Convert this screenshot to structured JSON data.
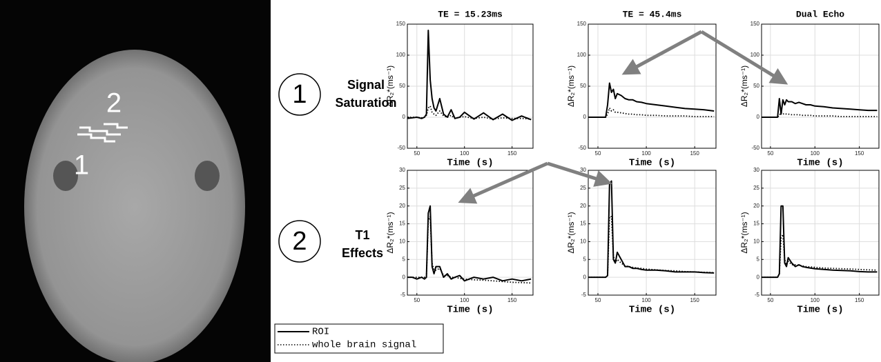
{
  "image_labels": [
    "2",
    "1"
  ],
  "row_labels": [
    {
      "number": "1",
      "lines": [
        "Signal",
        "Saturation"
      ]
    },
    {
      "number": "2",
      "lines": [
        "T1",
        "Effects"
      ]
    }
  ],
  "chart_data": [
    {
      "type": "line",
      "title": "TE = 15.23ms",
      "xlabel": "Time (s)",
      "ylabel": "ΔR₂*(ms⁻¹)",
      "x": [
        40,
        45,
        50,
        55,
        58,
        60,
        62,
        64,
        66,
        68,
        70,
        74,
        78,
        82,
        86,
        90,
        95,
        100,
        110,
        120,
        130,
        140,
        150,
        160,
        170
      ],
      "xlim": [
        40,
        172
      ],
      "xticks": [
        50,
        100,
        150
      ],
      "ylim": [
        -50,
        150
      ],
      "yticks": [
        -50,
        0,
        50,
        100,
        150
      ],
      "grid": true,
      "series": [
        {
          "name": "ROI",
          "color": "#000000",
          "style": "solid",
          "values": [
            -2,
            -1,
            0,
            -2,
            0,
            5,
            140,
            60,
            30,
            15,
            10,
            30,
            5,
            0,
            12,
            -2,
            0,
            8,
            -3,
            7,
            -4,
            5,
            -5,
            2,
            -4
          ]
        },
        {
          "name": "whole brain signal",
          "color": "#000000",
          "style": "dotted",
          "values": [
            0,
            0,
            0,
            -1,
            0,
            3,
            15,
            18,
            8,
            5,
            3,
            10,
            2,
            0,
            3,
            -2,
            0,
            1,
            -2,
            0,
            -3,
            -1,
            -2,
            -2,
            -3
          ]
        }
      ]
    },
    {
      "type": "line",
      "title": "TE = 45.4ms",
      "xlabel": "Time (s)",
      "ylabel": "ΔR₂*(ms⁻¹)",
      "x": [
        40,
        45,
        50,
        55,
        58,
        60,
        62,
        64,
        66,
        68,
        70,
        74,
        78,
        82,
        86,
        90,
        95,
        100,
        110,
        120,
        130,
        140,
        150,
        160,
        170
      ],
      "xlim": [
        40,
        172
      ],
      "xticks": [
        50,
        100,
        150
      ],
      "ylim": [
        -50,
        150
      ],
      "yticks": [
        -50,
        0,
        50,
        100,
        150
      ],
      "grid": true,
      "series": [
        {
          "name": "ROI",
          "color": "#000000",
          "style": "solid",
          "values": [
            0,
            0,
            0,
            0,
            0,
            20,
            55,
            40,
            45,
            30,
            38,
            35,
            30,
            28,
            28,
            25,
            24,
            22,
            20,
            18,
            16,
            14,
            13,
            12,
            10
          ]
        },
        {
          "name": "whole brain signal",
          "color": "#000000",
          "style": "dotted",
          "values": [
            0,
            0,
            0,
            0,
            0,
            5,
            15,
            10,
            12,
            8,
            8,
            7,
            6,
            5,
            5,
            4,
            4,
            3,
            3,
            2,
            2,
            2,
            1,
            1,
            1
          ]
        }
      ]
    },
    {
      "type": "line",
      "title": "Dual Echo",
      "xlabel": "Time (s)",
      "ylabel": "ΔR₂*(ms⁻¹)",
      "x": [
        40,
        45,
        50,
        55,
        58,
        60,
        62,
        64,
        66,
        68,
        70,
        74,
        78,
        82,
        86,
        90,
        95,
        100,
        110,
        120,
        130,
        140,
        150,
        160,
        170
      ],
      "xlim": [
        40,
        172
      ],
      "xticks": [
        50,
        100,
        150
      ],
      "ylim": [
        -50,
        150
      ],
      "yticks": [
        -50,
        0,
        50,
        100,
        150
      ],
      "grid": true,
      "series": [
        {
          "name": "ROI",
          "color": "#000000",
          "style": "solid",
          "values": [
            0,
            0,
            0,
            0,
            0,
            30,
            5,
            28,
            20,
            28,
            25,
            25,
            22,
            24,
            22,
            20,
            20,
            18,
            17,
            15,
            14,
            13,
            12,
            11,
            11
          ]
        },
        {
          "name": "whole brain signal",
          "color": "#000000",
          "style": "dotted",
          "values": [
            0,
            0,
            0,
            0,
            0,
            3,
            8,
            5,
            6,
            5,
            5,
            4,
            4,
            4,
            3,
            3,
            3,
            2,
            2,
            2,
            1,
            1,
            1,
            1,
            1
          ]
        }
      ]
    },
    {
      "type": "line",
      "xlabel": "Time (s)",
      "ylabel": "ΔR₂*(ms⁻¹)",
      "x": [
        40,
        45,
        50,
        55,
        58,
        60,
        62,
        64,
        66,
        68,
        70,
        74,
        78,
        82,
        86,
        90,
        95,
        100,
        110,
        120,
        130,
        140,
        150,
        160,
        170
      ],
      "xlim": [
        40,
        172
      ],
      "xticks": [
        50,
        100,
        150
      ],
      "ylim": [
        -5,
        30
      ],
      "yticks": [
        -5,
        0,
        5,
        10,
        15,
        20,
        25,
        30
      ],
      "grid": true,
      "series": [
        {
          "name": "ROI",
          "color": "#000000",
          "style": "solid",
          "values": [
            0,
            0,
            -0.5,
            0,
            -0.5,
            0,
            18,
            20,
            3,
            1,
            3,
            3,
            0,
            1,
            -0.5,
            0,
            0.5,
            -1,
            0,
            -0.5,
            0,
            -1,
            -0.5,
            -1,
            -0.5
          ]
        },
        {
          "name": "whole brain signal",
          "color": "#000000",
          "style": "dotted",
          "values": [
            0,
            0,
            0,
            0,
            0,
            0,
            16,
            17,
            4,
            2,
            2,
            2.5,
            0.5,
            0.5,
            0,
            0,
            -0.3,
            -0.5,
            -0.7,
            -0.8,
            -1,
            -1.2,
            -1.4,
            -1.5,
            -1.6
          ]
        }
      ]
    },
    {
      "type": "line",
      "xlabel": "Time (s)",
      "ylabel": "ΔR₂*(ms⁻¹)",
      "x": [
        40,
        45,
        50,
        55,
        58,
        60,
        62,
        64,
        66,
        68,
        70,
        74,
        78,
        82,
        86,
        90,
        95,
        100,
        110,
        120,
        130,
        140,
        150,
        160,
        170
      ],
      "xlim": [
        40,
        172
      ],
      "xticks": [
        50,
        100,
        150
      ],
      "ylim": [
        -5,
        30
      ],
      "yticks": [
        -5,
        0,
        5,
        10,
        15,
        20,
        25,
        30
      ],
      "grid": true,
      "series": [
        {
          "name": "ROI",
          "color": "#000000",
          "style": "solid",
          "values": [
            0,
            0,
            0,
            0,
            0,
            0.5,
            26,
            27,
            5,
            4,
            7,
            5,
            3,
            3,
            2.5,
            2.5,
            2.2,
            2,
            2,
            1.8,
            1.5,
            1.5,
            1.5,
            1.3,
            1.2
          ]
        },
        {
          "name": "whole brain signal",
          "color": "#000000",
          "style": "dotted",
          "values": [
            0,
            0,
            0,
            0,
            0,
            0.5,
            17,
            17,
            6,
            4,
            5,
            4,
            3.2,
            3,
            2.8,
            2.6,
            2.5,
            2.3,
            2.1,
            1.9,
            1.8,
            1.6,
            1.5,
            1.4,
            1.3
          ]
        }
      ]
    },
    {
      "type": "line",
      "xlabel": "Time (s)",
      "ylabel": "ΔR₂*(ms⁻¹)",
      "x": [
        40,
        45,
        50,
        55,
        58,
        60,
        62,
        64,
        66,
        68,
        70,
        74,
        78,
        82,
        86,
        90,
        95,
        100,
        110,
        120,
        130,
        140,
        150,
        160,
        170
      ],
      "xlim": [
        40,
        172
      ],
      "xticks": [
        50,
        100,
        150
      ],
      "ylim": [
        -5,
        30
      ],
      "yticks": [
        -5,
        0,
        5,
        10,
        15,
        20,
        25,
        30
      ],
      "grid": true,
      "series": [
        {
          "name": "ROI",
          "color": "#000000",
          "style": "solid",
          "values": [
            0,
            0,
            0,
            0,
            0,
            1,
            20,
            20,
            4,
            3,
            5.5,
            4,
            3,
            3.5,
            3,
            2.8,
            2.6,
            2.4,
            2.2,
            2,
            1.9,
            1.8,
            1.6,
            1.5,
            1.5
          ]
        },
        {
          "name": "whole brain signal",
          "color": "#000000",
          "style": "dotted",
          "values": [
            0,
            0,
            0,
            0,
            0,
            1,
            11,
            12,
            5,
            3.5,
            4.5,
            3.5,
            3.5,
            3.4,
            3.2,
            3,
            2.9,
            2.8,
            2.6,
            2.5,
            2.4,
            2.3,
            2.2,
            2.1,
            2
          ]
        }
      ]
    }
  ]
}
